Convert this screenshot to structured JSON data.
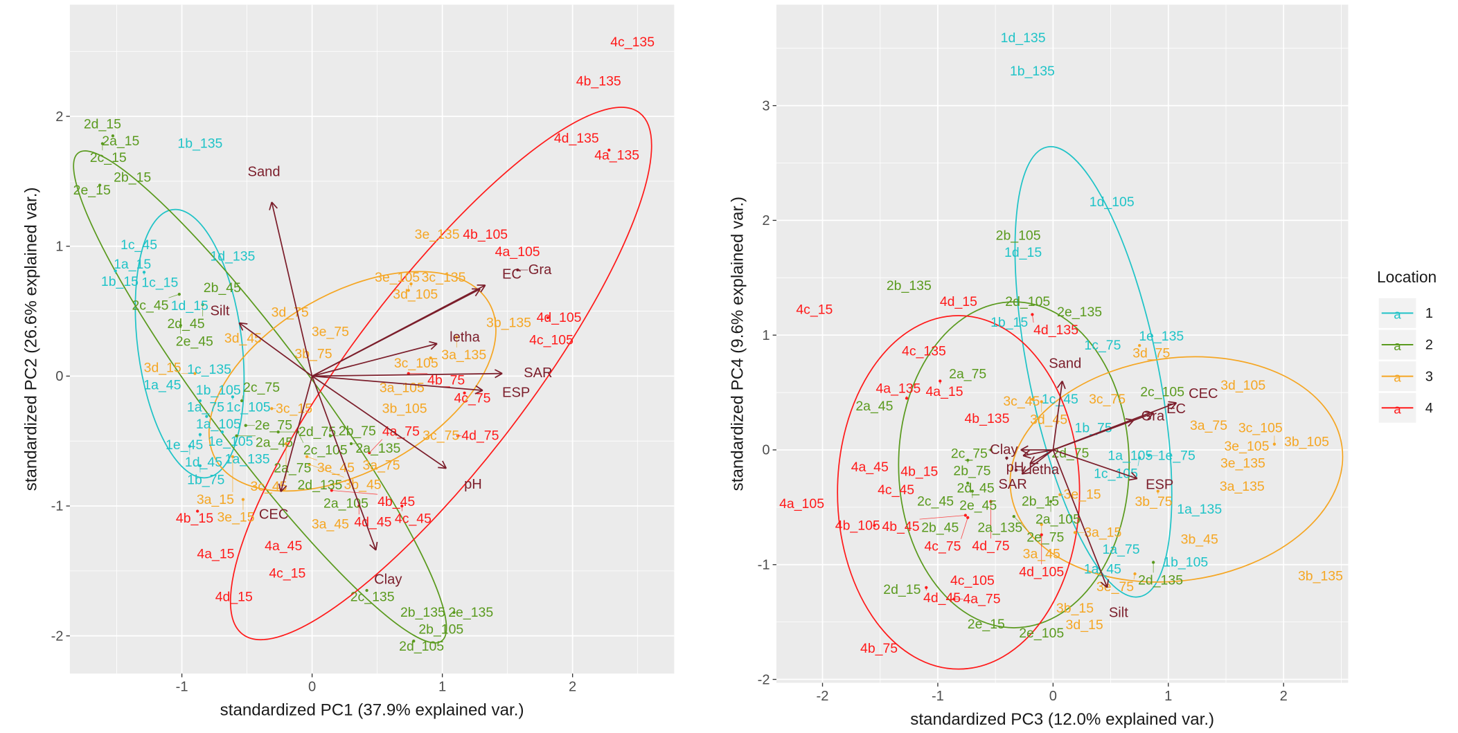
{
  "legend": {
    "title": "Location",
    "items": [
      {
        "label": "1",
        "key": "a",
        "color": "#1fc3c7"
      },
      {
        "label": "2",
        "key": "a",
        "color": "#5a9a1e"
      },
      {
        "label": "3",
        "key": "a",
        "color": "#f5a623"
      },
      {
        "label": "4",
        "key": "a",
        "color": "#ff1a1a"
      }
    ]
  },
  "loading_color": "#7b1e2b",
  "chart_data": [
    {
      "type": "scatter",
      "subtype": "pca-biplot",
      "xlabel": "standardized PC1 (37.9% explained var.)",
      "ylabel": "standardized PC2 (26.6% explained var.)",
      "xlim": [
        -1.86,
        2.78
      ],
      "ylim": [
        -2.29,
        2.86
      ],
      "xticks": [
        "-1",
        "0",
        "1",
        "2"
      ],
      "yticks": [
        "-2",
        "-1",
        "0",
        "1",
        "2"
      ],
      "grid": true,
      "points": {
        "1": [
          [
            "1b_135",
            -0.86,
            1.79
          ],
          [
            "1d_135",
            -0.61,
            0.92
          ],
          [
            "1c_45",
            -1.33,
            1.01
          ],
          [
            "1a_15",
            -1.38,
            0.86
          ],
          [
            "1b_15",
            -1.51,
            0.81
          ],
          [
            "1c_15",
            -1.29,
            0.8
          ],
          [
            "1d_15",
            -0.91,
            0.56
          ],
          [
            "1c_135",
            -0.79,
            0.05
          ],
          [
            "1a_45",
            -1.15,
            -0.07
          ],
          [
            "1b_105",
            -0.72,
            -0.11
          ],
          [
            "1a_75",
            -0.86,
            -0.19
          ],
          [
            "1c_105",
            -0.61,
            -0.16
          ],
          [
            "1a_105",
            -0.81,
            -0.31
          ],
          [
            "1e_105",
            -0.69,
            -0.43
          ],
          [
            "1e_45",
            -0.86,
            -0.45
          ],
          [
            "1d_45",
            -0.94,
            -0.54
          ],
          [
            "1a_135",
            -0.54,
            -0.64
          ],
          [
            "1b_75",
            -0.86,
            -0.69
          ]
        ],
        "2": [
          [
            "2d_15",
            -1.61,
            1.94
          ],
          [
            "2a_15",
            -1.53,
            1.85
          ],
          [
            "2c_15",
            -1.61,
            1.79
          ],
          [
            "2b_15",
            -1.38,
            1.53
          ],
          [
            "2e_15",
            -1.63,
            1.47
          ],
          [
            "2b_45",
            -0.69,
            0.68
          ],
          [
            "2c_45",
            -1.02,
            0.63
          ],
          [
            "2d_45",
            -0.84,
            0.55
          ],
          [
            "2e_45",
            -1.01,
            0.39
          ],
          [
            "2c_75",
            -0.54,
            -0.19
          ],
          [
            "2e_75",
            -0.51,
            -0.38
          ],
          [
            "2a_45",
            -0.58,
            -0.46
          ],
          [
            "2d_75",
            -0.26,
            -0.43
          ],
          [
            "2c_105",
            -0.11,
            -0.43
          ],
          [
            "2b_75",
            0.14,
            -0.46
          ],
          [
            "2a_135",
            0.3,
            -0.52
          ],
          [
            "2a_75",
            -0.15,
            -0.71
          ],
          [
            "2d_135",
            0.03,
            -0.82
          ],
          [
            "2a_105",
            0.26,
            -0.98
          ],
          [
            "2c_135",
            0.42,
            -1.65
          ],
          [
            "2b_135",
            0.85,
            -1.82
          ],
          [
            "2e_135",
            1.09,
            -1.82
          ],
          [
            "2b_105",
            0.96,
            -1.93
          ],
          [
            "2d_105",
            0.78,
            -2.04
          ]
        ],
        "3": [
          [
            "3e_135",
            0.96,
            1.09
          ],
          [
            "3c_135",
            1.01,
            0.76
          ],
          [
            "3d_105",
            0.76,
            0.71
          ],
          [
            "3e_105",
            0.74,
            0.66
          ],
          [
            "3d_75",
            -0.17,
            0.49
          ],
          [
            "3e_75",
            0.14,
            0.34
          ],
          [
            "3d_45",
            -0.53,
            0.29
          ],
          [
            "3b_75",
            0.01,
            0.17
          ],
          [
            "3a_135",
            1.11,
            0.3
          ],
          [
            "3b_135",
            1.51,
            0.41
          ],
          [
            "3c_105",
            0.91,
            0.14
          ],
          [
            "3a_105",
            0.69,
            -0.09
          ],
          [
            "3b_105",
            0.71,
            -0.25
          ],
          [
            "3c_75",
            0.99,
            -0.46
          ],
          [
            "3d_15",
            -0.9,
            0.02
          ],
          [
            "3c_15",
            -0.31,
            -0.25
          ],
          [
            "3c_45",
            -0.2,
            -0.52
          ],
          [
            "3e_45",
            -0.04,
            -0.62
          ],
          [
            "3b_45",
            -0.02,
            -0.68
          ],
          [
            "3a_75",
            0.49,
            -0.68
          ],
          [
            "3a_15",
            -0.61,
            -0.62
          ],
          [
            "3e_15",
            -0.53,
            -0.95
          ],
          [
            "3a_45",
            0.14,
            -1.14
          ]
        ],
        "4": [
          [
            "4c_135",
            2.46,
            2.57
          ],
          [
            "4b_135",
            2.2,
            2.27
          ],
          [
            "4d_135",
            2.03,
            1.83
          ],
          [
            "4a_135",
            2.28,
            1.74
          ],
          [
            "4b_105",
            1.33,
            1.09
          ],
          [
            "4a_105",
            1.54,
            0.97
          ],
          [
            "4d_105",
            1.81,
            0.45
          ],
          [
            "4c_105",
            1.8,
            0.29
          ],
          [
            "4b_75",
            0.74,
            0.02
          ],
          [
            "4c_75",
            1.17,
            -0.13
          ],
          [
            "4d_75",
            1.12,
            -0.46
          ],
          [
            "4a_75",
            0.44,
            -0.59
          ],
          [
            "4b_45",
            0.15,
            -0.88
          ],
          [
            "4d_45",
            0.36,
            -1.0
          ],
          [
            "4c_45",
            0.69,
            -1.0
          ],
          [
            "4a_45",
            -0.22,
            -1.31
          ],
          [
            "4b_15",
            -0.88,
            -1.04
          ],
          [
            "4a_15",
            -0.74,
            -1.37
          ],
          [
            "4c_15",
            -0.19,
            -1.52
          ],
          [
            "4d_15",
            -0.6,
            -1.7
          ]
        ]
      },
      "ellipses": {
        "1": {
          "cx": -0.94,
          "cy": 0.25,
          "rx": 1.04,
          "ry": 0.4,
          "angle": -82.8
        },
        "2": {
          "cx": -0.4,
          "cy": -0.16,
          "rx": 2.34,
          "ry": 0.4,
          "angle": -53.4
        },
        "3": {
          "cx": 0.31,
          "cy": -0.04,
          "rx": 1.21,
          "ry": 0.68,
          "angle": 30
        },
        "4": {
          "cx": 0.99,
          "cy": 0.02,
          "rx": 2.52,
          "ry": 0.68,
          "angle": 52.8
        }
      },
      "loadings": [
        {
          "name": "Sand",
          "x": -0.31,
          "y": 1.34
        },
        {
          "name": "Silt",
          "x": -0.56,
          "y": 0.41
        },
        {
          "name": "EC",
          "x": 1.29,
          "y": 0.67
        },
        {
          "name": "Gra",
          "x": 1.33,
          "y": 0.7
        },
        {
          "name": "letha",
          "x": 0.96,
          "y": 0.25
        },
        {
          "name": "SAR",
          "x": 1.46,
          "y": 0.02
        },
        {
          "name": "ESP",
          "x": 1.31,
          "y": -0.11
        },
        {
          "name": "pH",
          "x": 1.03,
          "y": -0.71
        },
        {
          "name": "CEC",
          "x": -0.24,
          "y": -0.89
        },
        {
          "name": "Clay",
          "x": 0.49,
          "y": -1.34
        }
      ]
    },
    {
      "type": "scatter",
      "subtype": "pca-biplot",
      "xlabel": "standardized PC3 (12.0% explained var.)",
      "ylabel": "standardized PC4 (9.6% explained var.)",
      "xlim": [
        -2.4,
        2.56
      ],
      "ylim": [
        -2.03,
        3.88
      ],
      "xticks": [
        "-2",
        "-1",
        "0",
        "1",
        "2"
      ],
      "yticks": [
        "-2",
        "-1",
        "0",
        "1",
        "2",
        "3"
      ],
      "grid": true,
      "points": {
        "1": [
          [
            "1d_135",
            -0.26,
            3.59
          ],
          [
            "1b_135",
            -0.18,
            3.3
          ],
          [
            "1d_105",
            0.51,
            2.16
          ],
          [
            "1d_15",
            -0.26,
            1.72
          ],
          [
            "1b_15",
            -0.38,
            1.11
          ],
          [
            "1c_75",
            0.43,
            0.91
          ],
          [
            "1e_135",
            0.94,
            0.99
          ],
          [
            "1c_45",
            0.06,
            0.44
          ],
          [
            "1b_75",
            0.35,
            0.19
          ],
          [
            "1a_105",
            0.67,
            -0.05
          ],
          [
            "1e_75",
            0.83,
            -0.05
          ],
          [
            "1c_105",
            0.75,
            -0.07
          ],
          [
            "1a_135",
            1.27,
            -0.52
          ],
          [
            "1a_75",
            0.59,
            -0.87
          ],
          [
            "1a_45",
            0.43,
            -1.04
          ],
          [
            "1b_105",
            1.15,
            -0.98
          ]
        ],
        "2": [
          [
            "2b_135",
            -1.25,
            1.43
          ],
          [
            "2b_105",
            -0.26,
            1.85
          ],
          [
            "2d_105",
            -0.22,
            1.29
          ],
          [
            "2e_135",
            0.23,
            1.2
          ],
          [
            "2a_75",
            -0.74,
            0.66
          ],
          [
            "2a_45",
            -1.55,
            0.38
          ],
          [
            "2c_105",
            0.99,
            0.52
          ],
          [
            "2c_75",
            -0.54,
            0.0
          ],
          [
            "2b_75",
            -0.74,
            -0.09
          ],
          [
            "2d_75",
            0.15,
            -0.03
          ],
          [
            "2d_45",
            -0.74,
            -0.29
          ],
          [
            "2e_45",
            -0.7,
            -0.36
          ],
          [
            "2c_45",
            -1.02,
            -0.45
          ],
          [
            "2b_45",
            -0.98,
            -0.68
          ],
          [
            "2a_135",
            -0.46,
            -0.68
          ],
          [
            "2b_15",
            -0.11,
            -0.45
          ],
          [
            "2a_105",
            -0.02,
            -0.45
          ],
          [
            "2e_75",
            -0.34,
            -0.58
          ],
          [
            "2d_135",
            0.87,
            -0.98
          ],
          [
            "2d_15",
            -1.31,
            -1.22
          ],
          [
            "2e_15",
            -0.58,
            -1.52
          ],
          [
            "2e_105",
            -0.1,
            -1.6
          ]
        ],
        "3": [
          [
            "3d_105",
            1.6,
            0.56
          ],
          [
            "3a_75",
            1.35,
            0.21
          ],
          [
            "3b_105",
            2.2,
            0.07
          ],
          [
            "3e_105",
            1.68,
            0.03
          ],
          [
            "3c_105",
            1.92,
            0.05
          ],
          [
            "3e_135",
            1.6,
            -0.11
          ],
          [
            "3a_135",
            1.64,
            -0.32
          ],
          [
            "3b_45",
            1.27,
            -0.78
          ],
          [
            "3b_135",
            2.32,
            -1.1
          ],
          [
            "3e_75",
            0.71,
            -1.08
          ],
          [
            "3b_75",
            0.91,
            -0.36
          ],
          [
            "3c_45",
            -0.18,
            0.44
          ],
          [
            "3d_45",
            -0.1,
            0.42
          ],
          [
            "3c_75",
            0.47,
            0.44
          ],
          [
            "3d_75",
            0.75,
            0.91
          ],
          [
            "3e_15",
            0.06,
            -0.39
          ],
          [
            "3a_45",
            -0.1,
            -0.65
          ],
          [
            "3a_15",
            0.19,
            -0.72
          ],
          [
            "3b_15",
            0.19,
            -1.38
          ],
          [
            "3d_15",
            0.23,
            -1.51
          ]
        ],
        "4": [
          [
            "4c_15",
            -2.07,
            1.22
          ],
          [
            "4d_15",
            -0.82,
            1.29
          ],
          [
            "4d_135",
            -0.18,
            1.18
          ],
          [
            "4c_135",
            -1.12,
            0.86
          ],
          [
            "4a_15",
            -0.98,
            0.6
          ],
          [
            "4a_135",
            -1.27,
            0.45
          ],
          [
            "4b_135",
            -0.62,
            0.28
          ],
          [
            "4a_45",
            -1.59,
            -0.15
          ],
          [
            "4b_15",
            -1.16,
            -0.19
          ],
          [
            "4c_45",
            -1.35,
            -0.32
          ],
          [
            "4d_75",
            -0.54,
            -0.45
          ],
          [
            "4c_75",
            -0.74,
            -0.59
          ],
          [
            "4b_45",
            -0.76,
            -0.57
          ],
          [
            "4d_105",
            -0.1,
            -0.74
          ],
          [
            "4b_105",
            -1.55,
            -0.66
          ],
          [
            "4a_105",
            -2.18,
            -0.47
          ],
          [
            "4c_105",
            -0.7,
            -1.14
          ],
          [
            "4d_45",
            -1.1,
            -1.2
          ],
          [
            "4a_75",
            -0.86,
            -1.3
          ],
          [
            "4b_75",
            -1.51,
            -1.73
          ]
        ]
      },
      "ellipses": {
        "1": {
          "cx": 0.35,
          "cy": 0.68,
          "rx": 2.0,
          "ry": 0.56,
          "angle": -78.4
        },
        "2": {
          "cx": -0.34,
          "cy": -0.13,
          "rx": 1.0,
          "ry": 1.42,
          "angle": 0
        },
        "3": {
          "cx": 1.07,
          "cy": -0.17,
          "rx": 1.45,
          "ry": 0.97,
          "angle": 8
        },
        "4": {
          "cx": -0.82,
          "cy": -0.37,
          "rx": 1.05,
          "ry": 1.54,
          "angle": 0
        }
      },
      "loadings": [
        {
          "name": "Sand",
          "x": 0.08,
          "y": 0.6
        },
        {
          "name": "Silt",
          "x": 0.47,
          "y": -1.2
        },
        {
          "name": "CEC",
          "x": 1.07,
          "y": 0.41
        },
        {
          "name": "EC",
          "x": 0.87,
          "y": 0.32
        },
        {
          "name": "Gra",
          "x": 0.7,
          "y": 0.26
        },
        {
          "name": "ESP",
          "x": 0.73,
          "y": -0.25
        },
        {
          "name": "Clay",
          "x": -0.28,
          "y": 0.0
        },
        {
          "name": "pH",
          "x": -0.26,
          "y": -0.05
        },
        {
          "name": "SAR",
          "x": -0.27,
          "y": -0.21
        },
        {
          "name": "letha",
          "x": -0.2,
          "y": -0.12
        }
      ]
    }
  ]
}
